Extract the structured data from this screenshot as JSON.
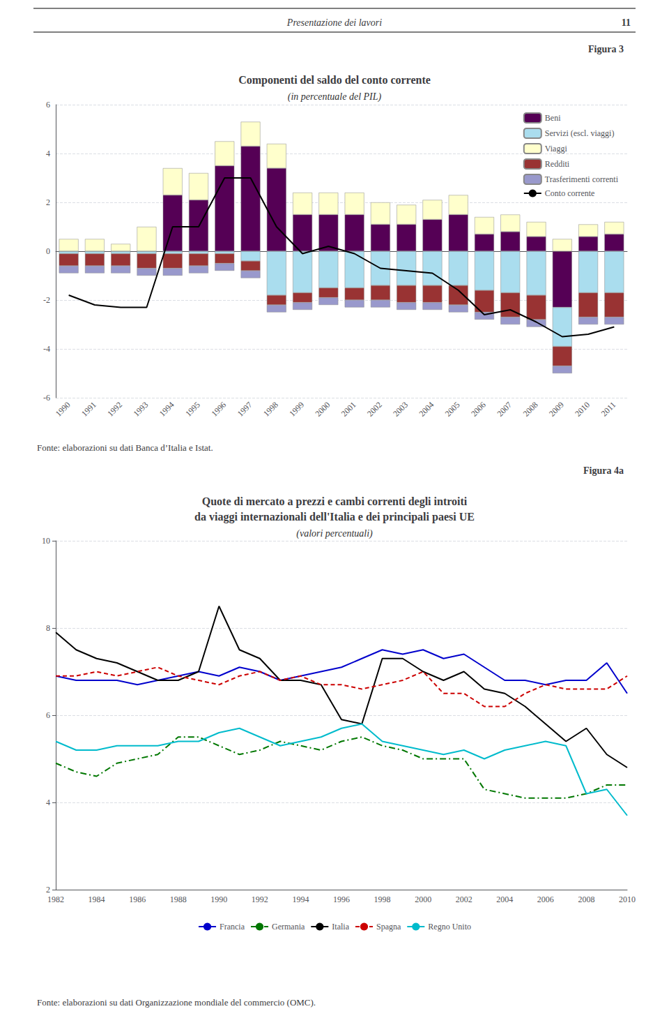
{
  "header": "Presentazione dei lavori",
  "page_number": "11",
  "chart_data": [
    {
      "type": "bar",
      "label": "Figura 3",
      "title": [
        "Componenti del saldo del conto corrente"
      ],
      "subtitle": "(in percentuale del PIL)",
      "source": "Fonte: elaborazioni su dati Banca d’Italia e Istat.",
      "categories": [
        1990,
        1991,
        1992,
        1993,
        1994,
        1995,
        1996,
        1997,
        1998,
        1999,
        2000,
        2001,
        2002,
        2003,
        2004,
        2005,
        2006,
        2007,
        2008,
        2009,
        2010,
        2011
      ],
      "stacked": true,
      "series": [
        {
          "name": "Beni",
          "type": "bar",
          "color": "#550055",
          "values": [
            0.0,
            0.0,
            0.0,
            0.0,
            2.3,
            2.1,
            3.5,
            4.3,
            3.4,
            1.5,
            1.5,
            1.5,
            1.1,
            1.1,
            1.3,
            1.5,
            0.7,
            0.8,
            0.6,
            -2.3,
            0.6,
            0.7
          ]
        },
        {
          "name": "Servizi (escl. viaggi)",
          "type": "bar",
          "color": "#aaddee",
          "values": [
            -0.1,
            -0.1,
            -0.1,
            -0.1,
            -0.1,
            -0.1,
            -0.1,
            -0.4,
            -1.8,
            -1.7,
            -1.5,
            -1.5,
            -1.4,
            -1.4,
            -1.4,
            -1.4,
            -1.6,
            -1.7,
            -1.8,
            -1.6,
            -1.7,
            -1.7
          ]
        },
        {
          "name": "Viaggi",
          "type": "bar",
          "color": "#ffffcc",
          "values": [
            0.5,
            0.5,
            0.3,
            1.0,
            1.1,
            1.1,
            1.0,
            1.0,
            1.0,
            0.9,
            0.9,
            0.9,
            0.9,
            0.8,
            0.8,
            0.8,
            0.7,
            0.7,
            0.6,
            0.5,
            0.5,
            0.5
          ]
        },
        {
          "name": "Redditi",
          "type": "bar",
          "color": "#993333",
          "values": [
            -0.5,
            -0.5,
            -0.5,
            -0.6,
            -0.6,
            -0.5,
            -0.4,
            -0.4,
            -0.4,
            -0.4,
            -0.4,
            -0.5,
            -0.6,
            -0.7,
            -0.7,
            -0.8,
            -0.9,
            -1.0,
            -1.0,
            -0.8,
            -1.0,
            -1.0
          ]
        },
        {
          "name": "Trasferimenti correnti",
          "type": "bar",
          "color": "#9999cc",
          "values": [
            -0.3,
            -0.3,
            -0.3,
            -0.3,
            -0.3,
            -0.3,
            -0.3,
            -0.3,
            -0.3,
            -0.3,
            -0.3,
            -0.3,
            -0.3,
            -0.3,
            -0.3,
            -0.3,
            -0.3,
            -0.3,
            -0.3,
            -0.3,
            -0.3,
            -0.3
          ]
        },
        {
          "name": "Conto corrente",
          "type": "line",
          "color": "#000000",
          "line_style": "solid",
          "values": [
            -1.8,
            -2.2,
            -2.3,
            -2.3,
            1.0,
            1.0,
            3.0,
            3.0,
            1.0,
            -0.1,
            0.2,
            -0.1,
            -0.7,
            -0.8,
            -0.9,
            -1.6,
            -2.6,
            -2.4,
            -2.9,
            -3.5,
            -3.4,
            -3.1
          ]
        }
      ],
      "ylim": [
        -6,
        6
      ],
      "yticks": [
        -6,
        -4,
        -2,
        0,
        2,
        4,
        6
      ],
      "grid": true,
      "legend": "upper right"
    },
    {
      "type": "line",
      "label": "Figura 4a",
      "title": [
        "Quote di mercato a prezzi e cambi correnti degli introiti",
        "da viaggi internazionali dell'Italia e dei principali paesi UE"
      ],
      "subtitle": "(valori percentuali)",
      "source": "Fonte: elaborazioni su dati Organizzazione mondiale del commercio (OMC).",
      "x": [
        1982,
        1983,
        1984,
        1985,
        1986,
        1987,
        1988,
        1989,
        1990,
        1991,
        1992,
        1993,
        1994,
        1995,
        1996,
        1997,
        1998,
        1999,
        2000,
        2001,
        2002,
        2003,
        2004,
        2005,
        2006,
        2007,
        2008,
        2009,
        2010
      ],
      "series": [
        {
          "name": "Francia",
          "color": "#0000cc",
          "line_style": "solid",
          "values": [
            6.9,
            6.8,
            6.8,
            6.8,
            6.7,
            6.8,
            6.9,
            7.0,
            6.9,
            7.1,
            7.0,
            6.8,
            6.9,
            7.0,
            7.1,
            7.3,
            7.5,
            7.4,
            7.5,
            7.3,
            7.4,
            7.1,
            6.8,
            6.8,
            6.7,
            6.8,
            6.8,
            7.2,
            6.5
          ]
        },
        {
          "name": "Germania",
          "color": "#007700",
          "line_style": "dashdot",
          "values": [
            4.9,
            4.7,
            4.6,
            4.9,
            5.0,
            5.1,
            5.5,
            5.5,
            5.3,
            5.1,
            5.2,
            5.4,
            5.3,
            5.2,
            5.4,
            5.5,
            5.3,
            5.2,
            5.0,
            5.0,
            5.0,
            4.3,
            4.2,
            4.1,
            4.1,
            4.1,
            4.2,
            4.4,
            4.4
          ]
        },
        {
          "name": "Italia",
          "color": "#000000",
          "line_style": "solid",
          "values": [
            7.9,
            7.5,
            7.3,
            7.2,
            7.0,
            6.8,
            6.8,
            7.0,
            8.5,
            7.5,
            7.3,
            6.8,
            6.8,
            6.7,
            5.9,
            5.8,
            7.3,
            7.3,
            7.0,
            6.8,
            7.0,
            6.6,
            6.5,
            6.2,
            5.8,
            5.4,
            5.7,
            5.1,
            4.8
          ]
        },
        {
          "name": "Spagna",
          "color": "#cc0000",
          "line_style": "dashed",
          "values": [
            6.9,
            6.9,
            7.0,
            6.9,
            7.0,
            7.1,
            6.9,
            6.8,
            6.7,
            6.9,
            7.0,
            6.8,
            6.9,
            6.7,
            6.7,
            6.6,
            6.7,
            6.8,
            7.0,
            6.5,
            6.5,
            6.2,
            6.2,
            6.5,
            6.7,
            6.6,
            6.6,
            6.6,
            6.9
          ]
        },
        {
          "name": "Regno Unito",
          "color": "#00bbcc",
          "line_style": "solid",
          "values": [
            5.4,
            5.2,
            5.2,
            5.3,
            5.3,
            5.3,
            5.4,
            5.4,
            5.6,
            5.7,
            5.5,
            5.3,
            5.4,
            5.5,
            5.7,
            5.8,
            5.4,
            5.3,
            5.2,
            5.1,
            5.2,
            5.0,
            5.2,
            5.3,
            5.4,
            5.3,
            4.2,
            4.3,
            3.7
          ]
        }
      ],
      "xlim": [
        1982,
        2010
      ],
      "xticks": [
        1982,
        1984,
        1986,
        1988,
        1990,
        1992,
        1994,
        1996,
        1998,
        2000,
        2002,
        2004,
        2006,
        2008,
        2010
      ],
      "ylim": [
        2,
        10
      ],
      "yticks": [
        2,
        4,
        6,
        8,
        10
      ],
      "grid": true,
      "legend": "lower center"
    }
  ]
}
